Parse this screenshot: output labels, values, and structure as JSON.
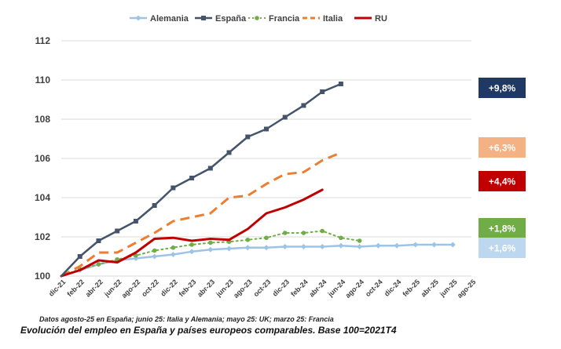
{
  "chart_data": {
    "type": "line",
    "ylim": [
      100,
      112
    ],
    "yticks": [
      100,
      102,
      104,
      106,
      108,
      110,
      112
    ],
    "categories": [
      "dic-21",
      "feb-22",
      "abr-22",
      "jun-22",
      "ago-22",
      "oct-22",
      "dic-22",
      "feb-23",
      "abr-23",
      "jun-23",
      "ago-23",
      "oct-23",
      "dic-23",
      "feb-24",
      "abr-24",
      "jun-24",
      "ago-24",
      "oct-24",
      "dic-24",
      "feb-25",
      "abr-25",
      "jun-25",
      "ago-25"
    ],
    "legend_position": "top",
    "series": [
      {
        "name": "Alemania",
        "key": "alemania",
        "color": "#9DC3E6",
        "style": "solid-diamond",
        "badge": "+1,6%",
        "badge_color": "#BDD7EE",
        "values": [
          100,
          100.3,
          100.6,
          100.8,
          100.9,
          101.0,
          101.1,
          101.25,
          101.35,
          101.4,
          101.45,
          101.45,
          101.5,
          101.5,
          101.5,
          101.55,
          101.5,
          101.55,
          101.55,
          101.6,
          101.6,
          101.6,
          null
        ]
      },
      {
        "name": "España",
        "key": "espana",
        "color": "#44546A",
        "style": "solid-square",
        "badge": "+9,8%",
        "badge_color": "#203864",
        "values": [
          100,
          101.0,
          101.8,
          102.3,
          102.8,
          103.6,
          104.5,
          105.0,
          105.5,
          106.3,
          107.1,
          107.5,
          108.1,
          108.7,
          109.4,
          109.8,
          null,
          null,
          null,
          null,
          null,
          null,
          null
        ]
      },
      {
        "name": "Francia",
        "key": "francia",
        "color": "#70AD47",
        "style": "dotted-circle",
        "badge": "+1,8%",
        "badge_color": "#70AD47",
        "values": [
          100,
          100.35,
          100.6,
          100.85,
          101.05,
          101.3,
          101.45,
          101.6,
          101.7,
          101.75,
          101.85,
          101.95,
          102.2,
          102.2,
          102.3,
          101.95,
          101.8,
          null,
          null,
          null,
          null,
          null,
          null
        ]
      },
      {
        "name": "Italia",
        "key": "italia",
        "color": "#ED7D31",
        "style": "dashed",
        "badge": "+6,3%",
        "badge_color": "#F4B183",
        "values": [
          100,
          100.5,
          101.2,
          101.2,
          101.7,
          102.2,
          102.8,
          103.0,
          103.2,
          104.0,
          104.1,
          104.7,
          105.2,
          105.3,
          105.9,
          106.3,
          null,
          null,
          null,
          null,
          null,
          null,
          null
        ]
      },
      {
        "name": "RU",
        "key": "ru",
        "color": "#C00000",
        "style": "solid",
        "badge": "+4,4%",
        "badge_color": "#C00000",
        "values": [
          100,
          100.3,
          100.8,
          100.7,
          101.2,
          101.9,
          101.95,
          101.8,
          101.9,
          101.85,
          102.4,
          103.2,
          103.5,
          103.9,
          104.4,
          null,
          null,
          null,
          null,
          null,
          null,
          null,
          null
        ]
      }
    ]
  },
  "footnote": "Datos agosto-25 en España; junio 25: Italia y Alemania; mayo 25: UK;  marzo 25: Francia",
  "caption": "Evolución del empleo en España y países europeos comparables. Base 100=2021T4"
}
